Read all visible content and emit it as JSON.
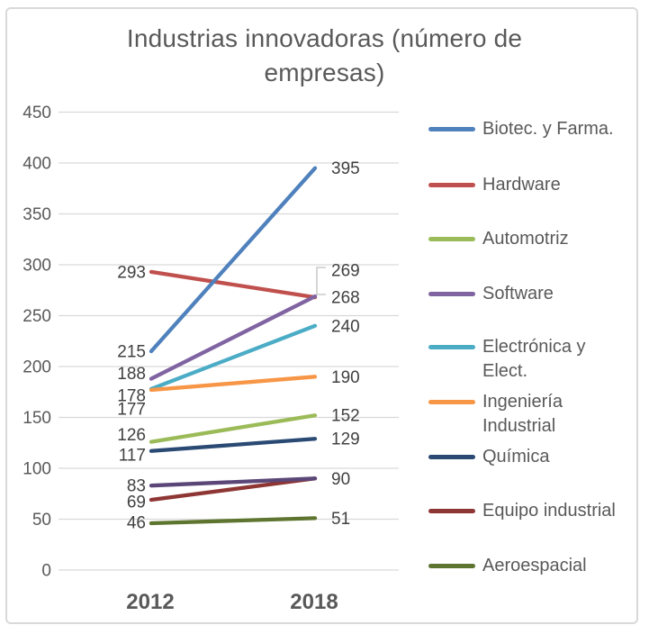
{
  "title": "Industrias innovadoras (número de empresas)",
  "title_lines": [
    "Industrias innovadoras (número de",
    "empresas)"
  ],
  "x_axis": {
    "categories": [
      "2012",
      "2018"
    ]
  },
  "y_axis": {
    "ticks": [
      0,
      50,
      100,
      150,
      200,
      250,
      300,
      350,
      400,
      450
    ],
    "min": 0,
    "max": 450
  },
  "chart_data": {
    "type": "line",
    "title": "Industrias innovadoras (número de empresas)",
    "x": [
      "2012",
      "2018"
    ],
    "series": [
      {
        "name": "Biotec. y Farma.",
        "values": [
          215,
          395
        ],
        "color": "#4F81BD",
        "in_legend": true
      },
      {
        "name": "Hardware",
        "values": [
          293,
          268
        ],
        "color": "#C0504D",
        "in_legend": true
      },
      {
        "name": "Automotriz",
        "values": [
          126,
          152
        ],
        "color": "#9BBB59",
        "in_legend": true
      },
      {
        "name": "Software",
        "values": [
          188,
          269
        ],
        "color": "#8064A2",
        "in_legend": true
      },
      {
        "name": "Electrónica y Elect.",
        "values": [
          178,
          240
        ],
        "color": "#4BACC6",
        "in_legend": true
      },
      {
        "name": "Ingeniería Industrial",
        "values": [
          177,
          190
        ],
        "color": "#F79646",
        "in_legend": true
      },
      {
        "name": "Química",
        "values": [
          117,
          129
        ],
        "color": "#2A4A74",
        "in_legend": true
      },
      {
        "name": "Equipo industrial",
        "values": [
          69,
          90
        ],
        "color": "#8E3634",
        "in_legend": true
      },
      {
        "name": "Aeroespacial",
        "values": [
          46,
          51
        ],
        "color": "#5E7530",
        "in_legend": true
      },
      {
        "name": "",
        "values": [
          83,
          90
        ],
        "color": "#5A4778",
        "in_legend": false
      }
    ],
    "data_labels": true,
    "grid": true,
    "legend_position": "right",
    "ylim": [
      0,
      450
    ]
  },
  "colors": {
    "title_text": "#595959",
    "axis_text": "#595959",
    "data_label_text": "#404040",
    "gridline": "#d9d9d9",
    "leader_line": "#bfbfbf",
    "frame_border": "#d9d9d9",
    "background": "#ffffff"
  }
}
